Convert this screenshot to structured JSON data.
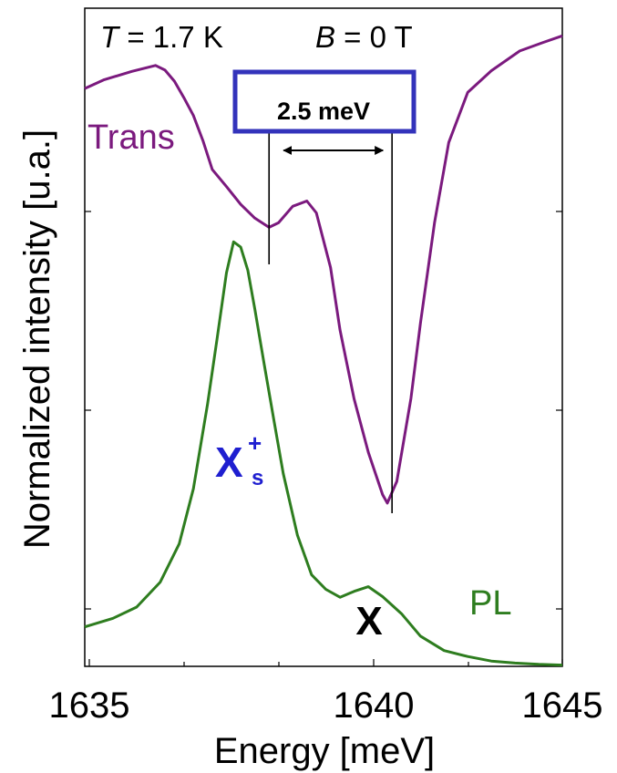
{
  "chart_data": {
    "type": "line",
    "xlabel": "Energy [meV]",
    "ylabel": "Normalized intensity [u.a.]",
    "xlim": [
      1635,
      1645
    ],
    "ylim": [
      0,
      1
    ],
    "x_ticks": [
      "1635",
      "1640",
      "1645"
    ],
    "y_tick_labels_shown": false,
    "grid": false,
    "conditions": {
      "T_symbol": "T",
      "T_value": " = 1.7 K",
      "B_symbol": "B",
      "B_value": " = 0 T"
    },
    "series": [
      {
        "name": "Trans",
        "color": "#7b1a7e",
        "x": [
          1634.8,
          1635.3,
          1635.9,
          1636.4,
          1636.6,
          1636.8,
          1637.0,
          1637.2,
          1637.4,
          1637.6,
          1637.9,
          1638.2,
          1638.5,
          1638.8,
          1639.0,
          1639.3,
          1639.6,
          1639.8,
          1640.1,
          1640.3,
          1640.6,
          1640.9,
          1641.2,
          1641.3,
          1641.5,
          1641.8,
          1642.0,
          1642.3,
          1642.6,
          1643.0,
          1643.5,
          1644.1,
          1644.6,
          1645.0
        ],
        "values": [
          0.878,
          0.891,
          0.904,
          0.913,
          0.906,
          0.889,
          0.864,
          0.837,
          0.799,
          0.755,
          0.729,
          0.702,
          0.681,
          0.667,
          0.674,
          0.699,
          0.707,
          0.689,
          0.606,
          0.511,
          0.406,
          0.325,
          0.261,
          0.248,
          0.281,
          0.407,
          0.521,
          0.675,
          0.796,
          0.872,
          0.905,
          0.935,
          0.948,
          0.958
        ]
      },
      {
        "name": "PL",
        "color": "#2e7d1f",
        "x": [
          1634.8,
          1635.5,
          1636.0,
          1636.5,
          1636.9,
          1637.2,
          1637.5,
          1637.7,
          1637.9,
          1638.05,
          1638.2,
          1638.35,
          1638.5,
          1638.7,
          1638.9,
          1639.1,
          1639.4,
          1639.7,
          1640.0,
          1640.3,
          1640.6,
          1640.9,
          1641.2,
          1641.6,
          1642.0,
          1642.5,
          1643.0,
          1643.5,
          1644.0,
          1644.5,
          1645.0
        ],
        "values": [
          0.06,
          0.073,
          0.09,
          0.128,
          0.186,
          0.27,
          0.399,
          0.497,
          0.598,
          0.645,
          0.637,
          0.602,
          0.543,
          0.458,
          0.375,
          0.293,
          0.199,
          0.139,
          0.117,
          0.105,
          0.114,
          0.121,
          0.106,
          0.08,
          0.046,
          0.024,
          0.015,
          0.008,
          0.005,
          0.003,
          0.002
        ]
      }
    ],
    "annotations": {
      "trans_label": "Trans",
      "pl_label": "PL",
      "xs_base": "X",
      "xs_sup": "+",
      "xs_sub": "s",
      "x_label": "X",
      "splitting_label": "2.5 meV",
      "marker_left_x": 1638.8,
      "marker_right_x": 1641.4,
      "colors": {
        "trans": "#7b1a7e",
        "pl": "#2e7d1f",
        "xs_label": "#1f1fd0",
        "box": "#3333bb"
      }
    }
  }
}
